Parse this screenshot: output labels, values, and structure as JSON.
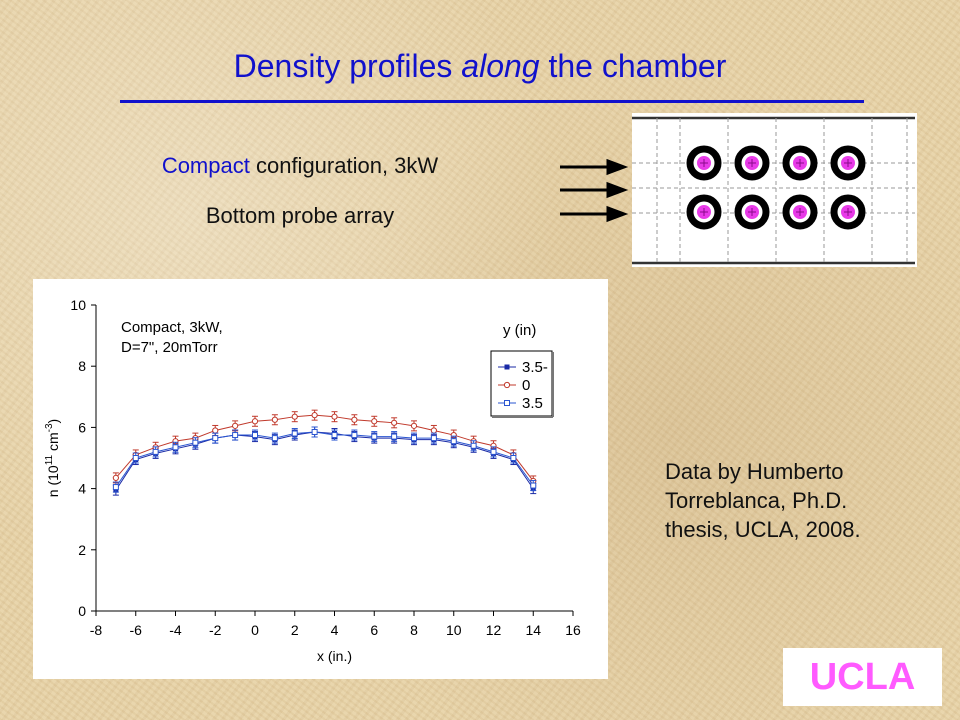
{
  "slide": {
    "title_pre": "Density profiles ",
    "title_em": "along",
    "title_post": " the chamber",
    "config_accent": "Compact",
    "config_rest": " configuration, 3kW",
    "probe_array": "Bottom probe array",
    "credit_lines": [
      "Data by Humberto",
      "Torreblanca, Ph.D.",
      "thesis, UCLA, 2008."
    ],
    "logo": "UCLA"
  },
  "colors": {
    "title": "#1111cc",
    "series_a": "#1a2aa6",
    "series_b": "#c0392b",
    "series_c": "#2a55d0",
    "probe_dot": "#e83ae8",
    "logo": "#ff5aff"
  },
  "chart_data": {
    "type": "line",
    "annotation_lines": [
      "Compact, 3kW,",
      "D=7\", 20mTorr"
    ],
    "legend_title": "y (in)",
    "xlabel": "x (in.)",
    "ylabel_parts": [
      "n (10",
      "11",
      " cm",
      "-3",
      ")"
    ],
    "xlim": [
      -8,
      16
    ],
    "ylim": [
      0,
      10
    ],
    "xticks": [
      -8,
      -6,
      -4,
      -2,
      0,
      2,
      4,
      6,
      8,
      10,
      12,
      14,
      16
    ],
    "yticks": [
      0,
      2,
      4,
      6,
      8,
      10
    ],
    "x": [
      -7,
      -6,
      -5,
      -4,
      -3,
      -2,
      -1,
      0,
      1,
      2,
      3,
      4,
      5,
      6,
      7,
      8,
      9,
      10,
      11,
      12,
      13,
      14
    ],
    "series": [
      {
        "name": "3.5-",
        "marker": "filled-square",
        "values": [
          3.95,
          4.95,
          5.15,
          5.3,
          5.45,
          5.65,
          5.75,
          5.7,
          5.6,
          5.75,
          5.85,
          5.8,
          5.7,
          5.65,
          5.65,
          5.6,
          5.6,
          5.5,
          5.35,
          5.15,
          4.95,
          4.0
        ]
      },
      {
        "name": "0",
        "marker": "open-circle",
        "values": [
          4.35,
          5.1,
          5.35,
          5.55,
          5.65,
          5.9,
          6.05,
          6.2,
          6.25,
          6.35,
          6.4,
          6.35,
          6.25,
          6.2,
          6.15,
          6.05,
          5.9,
          5.75,
          5.55,
          5.4,
          5.1,
          4.25
        ]
      },
      {
        "name": "3.5",
        "marker": "open-square",
        "values": [
          4.05,
          5.0,
          5.2,
          5.35,
          5.5,
          5.65,
          5.75,
          5.75,
          5.65,
          5.8,
          5.85,
          5.75,
          5.75,
          5.7,
          5.7,
          5.65,
          5.65,
          5.55,
          5.4,
          5.2,
          5.0,
          4.1
        ]
      }
    ],
    "grid": false,
    "legend_position": "top-right"
  }
}
